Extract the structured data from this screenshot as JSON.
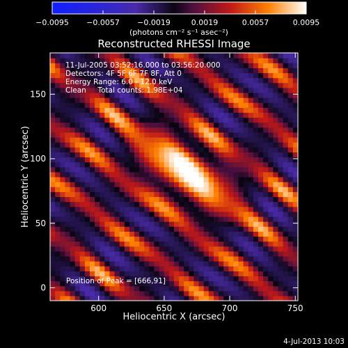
{
  "chart_data": {
    "type": "heatmap",
    "title": "Reconstructed RHESSI Image",
    "xlabel": "Heliocentric X (arcsec)",
    "ylabel": "Heliocentric Y (arcsec)",
    "xlim": [
      563,
      752
    ],
    "ylim": [
      -10,
      182
    ],
    "x_ticks": [
      600,
      650,
      700,
      750
    ],
    "y_ticks": [
      0,
      50,
      100,
      150
    ],
    "x_tick_labels": [
      "600",
      "650",
      "700",
      "750"
    ],
    "y_tick_labels": [
      "0",
      "50",
      "100",
      "150"
    ],
    "colorbar": {
      "range": [
        -0.0095,
        0.0095
      ],
      "ticks": [
        -0.0095,
        -0.0057,
        -0.0019,
        0.0019,
        0.0057,
        0.0095
      ],
      "tick_labels": [
        "−0.0095",
        "−0.0057",
        "−0.0019",
        "0.0019",
        "0.0057",
        "0.0095"
      ],
      "unit": "(photons cm⁻² s⁻¹ asec⁻²)"
    },
    "annotations": [
      "11-Jul-2005 03:52:16.000 to 03:56:20.000",
      "Detectors: 4F 5F 6F 7F 8F, Att 0",
      "Energy Range: 6.0 - 12.0 keV",
      "Clean     Total counts: 1.98E+04"
    ],
    "peak_label": "Position of Peak = [666,91]",
    "peak": [
      666,
      91
    ],
    "stripe_angle_deg": 38,
    "stripe_spacing_arcsec": 34
  },
  "footer": {
    "timestamp": "4-Jul-2013 10:03"
  }
}
